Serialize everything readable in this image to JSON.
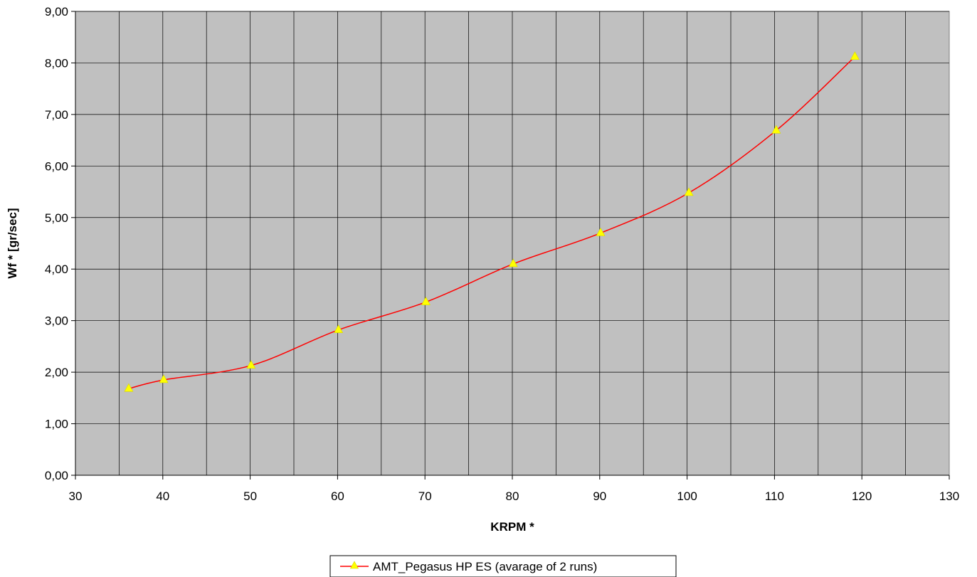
{
  "chart_data": {
    "type": "line",
    "title": "",
    "xlabel": "KRPM *",
    "ylabel": "Wf * [gr/sec]",
    "xlim": [
      30,
      130
    ],
    "ylim": [
      0,
      9
    ],
    "x_ticks": [
      30,
      40,
      50,
      60,
      70,
      80,
      90,
      100,
      110,
      120,
      130
    ],
    "x_tick_labels": [
      "30",
      "40",
      "50",
      "60",
      "70",
      "80",
      "90",
      "100",
      "110",
      "120",
      "130"
    ],
    "y_ticks": [
      0,
      1,
      2,
      3,
      4,
      5,
      6,
      7,
      8,
      9
    ],
    "y_tick_labels": [
      "0,00",
      "1,00",
      "2,00",
      "3,00",
      "4,00",
      "5,00",
      "6,00",
      "7,00",
      "8,00",
      "9,00"
    ],
    "x_minor_grid_step": 5,
    "grid": true,
    "plot_background": "#c0c0c0",
    "legend_position": "bottom-center",
    "series": [
      {
        "name": "AMT_Pegasus HP ES (avarage of 2 runs)",
        "line_color": "#ff0000",
        "marker": "triangle",
        "marker_color": "#ffff00",
        "x": [
          36.1,
          40.1,
          50.1,
          60.1,
          70.1,
          80.1,
          90.1,
          100.2,
          110.2,
          119.2
        ],
        "y": [
          1.68,
          1.85,
          2.13,
          2.82,
          3.36,
          4.1,
          4.7,
          5.48,
          6.69,
          8.12
        ]
      }
    ]
  }
}
